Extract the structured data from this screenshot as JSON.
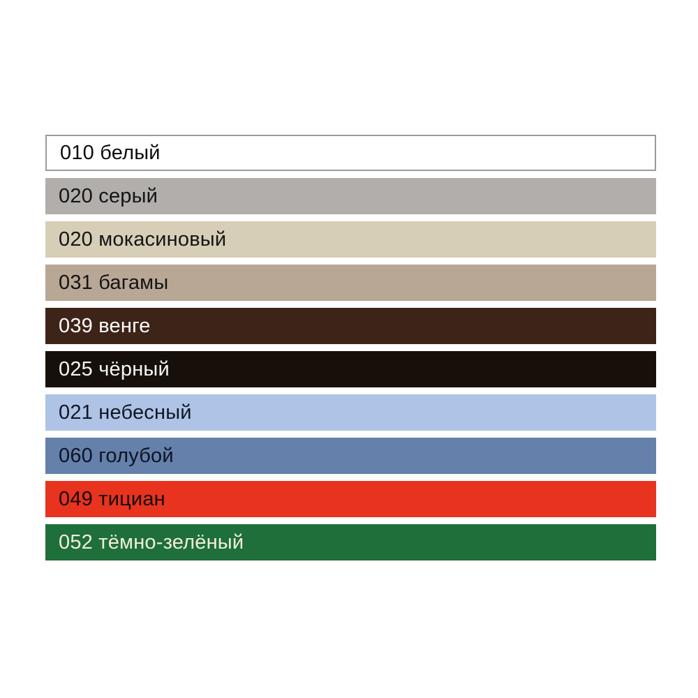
{
  "page": {
    "background_color": "#ffffff",
    "description": "Color swatch palette list with product color codes and Russian color names"
  },
  "palette": {
    "swatches": [
      {
        "code": "010",
        "name": "белый",
        "label": "010 белый",
        "bg_color": "#ffffff",
        "text_color": "#0d0d0d",
        "border_color": "#9b9b9b"
      },
      {
        "code": "020",
        "name": "серый",
        "label": "020 серый",
        "bg_color": "#b1aeab",
        "text_color": "#141414",
        "border_color": ""
      },
      {
        "code": "020",
        "name": "мокасиновый",
        "label": "020 мокасиновый",
        "bg_color": "#d6ceb6",
        "text_color": "#141414",
        "border_color": ""
      },
      {
        "code": "031",
        "name": "багамы",
        "label": "031 багамы",
        "bg_color": "#b9a795",
        "text_color": "#141414",
        "border_color": ""
      },
      {
        "code": "039",
        "name": "венге",
        "label": "039 венге",
        "bg_color": "#3e2418",
        "text_color": "#fdfdfd",
        "border_color": ""
      },
      {
        "code": "025",
        "name": "чёрный",
        "label": "025 чёрный",
        "bg_color": "#17100a",
        "text_color": "#f5f5f3",
        "border_color": ""
      },
      {
        "code": "021",
        "name": "небесный",
        "label": "021 небесный",
        "bg_color": "#aec3e6",
        "text_color": "#121723",
        "border_color": ""
      },
      {
        "code": "060",
        "name": "голубой",
        "label": "060 голубой",
        "bg_color": "#6480ab",
        "text_color": "#0e1320",
        "border_color": ""
      },
      {
        "code": "049",
        "name": "тициан",
        "label": "049 тициан",
        "bg_color": "#e8331f",
        "text_color": "#160805",
        "border_color": ""
      },
      {
        "code": "052",
        "name": "тёмно-зелёный",
        "label": "052 тёмно-зелёный",
        "bg_color": "#1e6f39",
        "text_color": "#f2efdb",
        "border_color": ""
      }
    ]
  }
}
